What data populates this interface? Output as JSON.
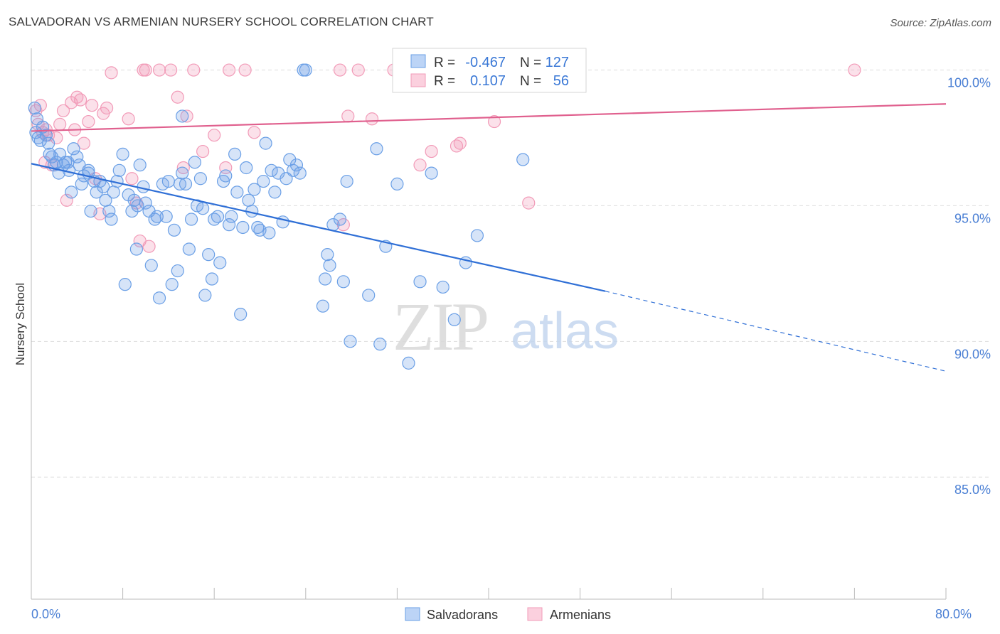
{
  "title": "SALVADORAN VS ARMENIAN NURSERY SCHOOL CORRELATION CHART",
  "source": "Source: ZipAtlas.com",
  "watermark": {
    "zip": "ZIP",
    "atlas": "atlas"
  },
  "colors": {
    "salvadoran": "#6a9fe6",
    "salvadoran_line": "#2f6fd6",
    "armenian": "#f29bb8",
    "armenian_line": "#e0608e",
    "tick_text": "#4a7fd4",
    "grid": "#dddddd"
  },
  "legend": {
    "r_label": "R =",
    "n_label": "N =",
    "salvadoran": {
      "r": "-0.467",
      "n": "127"
    },
    "armenian": {
      "r": "0.107",
      "n": "56"
    }
  },
  "chart_data": {
    "type": "scatter",
    "title": "SALVADORAN VS ARMENIAN NURSERY SCHOOL CORRELATION CHART",
    "xlabel": "",
    "ylabel": "Nursery School",
    "xlim": [
      0,
      80
    ],
    "ylim": [
      80.5,
      100.8
    ],
    "x_ticks": [
      0,
      8,
      16,
      24,
      32,
      40,
      48,
      56,
      64,
      72,
      80
    ],
    "x_tick_labels": [
      {
        "value": 0,
        "label": "0.0%"
      },
      {
        "value": 80,
        "label": "80.0%"
      }
    ],
    "y_ticks": [
      {
        "value": 100,
        "label": "100.0%"
      },
      {
        "value": 95,
        "label": "95.0%"
      },
      {
        "value": 90,
        "label": "90.0%"
      },
      {
        "value": 85,
        "label": "85.0%"
      }
    ],
    "series": [
      {
        "name": "Salvadorans",
        "r": -0.467,
        "n": 127,
        "trend": {
          "x0": 0,
          "y0": 96.55,
          "x1": 50.2,
          "y1": 91.85,
          "dash_to_x": 80,
          "dash_to_y": 88.9
        },
        "points": [
          [
            0.3,
            98.6
          ],
          [
            0.5,
            98.2
          ],
          [
            0.4,
            97.7
          ],
          [
            0.6,
            97.5
          ],
          [
            0.8,
            97.4
          ],
          [
            1,
            97.9
          ],
          [
            1.3,
            97.6
          ],
          [
            1.5,
            97.3
          ],
          [
            1.8,
            96.8
          ],
          [
            2,
            96.5
          ],
          [
            2.2,
            96.6
          ],
          [
            2.4,
            96.2
          ],
          [
            2.5,
            96.9
          ],
          [
            2.8,
            96.5
          ],
          [
            3,
            96.6
          ],
          [
            3.3,
            96.3
          ],
          [
            3.5,
            95.5
          ],
          [
            3.7,
            97.1
          ],
          [
            4,
            96.8
          ],
          [
            4.2,
            96.5
          ],
          [
            4.4,
            95.8
          ],
          [
            4.6,
            96.1
          ],
          [
            5,
            96.3
          ],
          [
            5.2,
            94.8
          ],
          [
            5.5,
            95.9
          ],
          [
            5.7,
            95.5
          ],
          [
            6,
            95.9
          ],
          [
            6.3,
            95.7
          ],
          [
            6.5,
            95.2
          ],
          [
            6.8,
            94.8
          ],
          [
            7,
            94.5
          ],
          [
            7.2,
            95.5
          ],
          [
            7.5,
            95.9
          ],
          [
            7.7,
            96.3
          ],
          [
            8,
            96.9
          ],
          [
            8.2,
            92.1
          ],
          [
            8.5,
            95.4
          ],
          [
            8.8,
            94.8
          ],
          [
            9,
            95.2
          ],
          [
            9.2,
            93.4
          ],
          [
            9.5,
            96.5
          ],
          [
            9.8,
            95.7
          ],
          [
            10,
            95.1
          ],
          [
            10.3,
            94.8
          ],
          [
            10.5,
            92.8
          ],
          [
            10.8,
            94.5
          ],
          [
            11,
            94.6
          ],
          [
            11.2,
            91.6
          ],
          [
            11.5,
            95.8
          ],
          [
            11.8,
            94.6
          ],
          [
            12,
            95.9
          ],
          [
            12.3,
            92.1
          ],
          [
            12.5,
            94.1
          ],
          [
            12.8,
            92.6
          ],
          [
            13,
            95.8
          ],
          [
            13.2,
            96.2
          ],
          [
            13.5,
            95.8
          ],
          [
            13.8,
            93.4
          ],
          [
            14,
            94.5
          ],
          [
            14.3,
            96.6
          ],
          [
            14.5,
            95.0
          ],
          [
            14.8,
            96.0
          ],
          [
            15,
            94.9
          ],
          [
            15.2,
            91.7
          ],
          [
            15.5,
            93.2
          ],
          [
            15.8,
            92.3
          ],
          [
            16,
            94.5
          ],
          [
            16.3,
            94.6
          ],
          [
            16.5,
            92.9
          ],
          [
            16.8,
            95.9
          ],
          [
            17,
            96.1
          ],
          [
            17.3,
            94.3
          ],
          [
            17.5,
            94.6
          ],
          [
            17.8,
            96.9
          ],
          [
            18,
            95.5
          ],
          [
            18.3,
            91.0
          ],
          [
            18.5,
            94.2
          ],
          [
            18.8,
            96.4
          ],
          [
            19,
            95.2
          ],
          [
            19.3,
            94.8
          ],
          [
            19.5,
            95.6
          ],
          [
            19.8,
            94.2
          ],
          [
            20,
            94.1
          ],
          [
            20.3,
            95.9
          ],
          [
            20.5,
            97.3
          ],
          [
            20.8,
            94.0
          ],
          [
            21,
            96.3
          ],
          [
            21.3,
            95.5
          ],
          [
            21.6,
            96.2
          ],
          [
            22,
            94.4
          ],
          [
            22.3,
            96.0
          ],
          [
            22.6,
            96.7
          ],
          [
            22.9,
            96.3
          ],
          [
            23.2,
            96.5
          ],
          [
            23.5,
            96.2
          ],
          [
            23.8,
            100
          ],
          [
            24,
            100
          ],
          [
            25.5,
            91.3
          ],
          [
            25.7,
            92.3
          ],
          [
            25.9,
            93.2
          ],
          [
            26.1,
            92.8
          ],
          [
            26.4,
            94.3
          ],
          [
            27,
            94.5
          ],
          [
            27.3,
            92.2
          ],
          [
            27.6,
            95.9
          ],
          [
            27.9,
            90.0
          ],
          [
            29.5,
            91.7
          ],
          [
            30.2,
            97.1
          ],
          [
            30.5,
            89.9
          ],
          [
            31,
            93.5
          ],
          [
            32,
            95.8
          ],
          [
            33,
            89.2
          ],
          [
            34,
            92.2
          ],
          [
            35,
            96.2
          ],
          [
            36,
            92.0
          ],
          [
            37,
            90.8
          ],
          [
            38,
            92.9
          ],
          [
            39,
            93.9
          ],
          [
            43,
            96.7
          ],
          [
            13.2,
            98.3
          ],
          [
            5,
            96.2
          ],
          [
            3.2,
            96.6
          ],
          [
            9.3,
            95.0
          ],
          [
            1.6,
            96.9
          ]
        ]
      },
      {
        "name": "Armenians",
        "r": 0.107,
        "n": 56,
        "trend": {
          "x0": 0,
          "y0": 97.75,
          "x1": 80,
          "y1": 98.75
        },
        "points": [
          [
            0.4,
            98.5
          ],
          [
            0.6,
            98.0
          ],
          [
            0.8,
            98.7
          ],
          [
            1,
            97.7
          ],
          [
            1.3,
            97.8
          ],
          [
            1.5,
            97.6
          ],
          [
            1.8,
            96.5
          ],
          [
            2.2,
            97.5
          ],
          [
            2.5,
            98.0
          ],
          [
            2.8,
            98.5
          ],
          [
            3.1,
            95.2
          ],
          [
            3.5,
            98.8
          ],
          [
            3.8,
            97.8
          ],
          [
            4,
            99.0
          ],
          [
            4.3,
            98.9
          ],
          [
            4.6,
            97.3
          ],
          [
            5,
            98.1
          ],
          [
            5.3,
            98.7
          ],
          [
            5.6,
            96.0
          ],
          [
            6,
            94.7
          ],
          [
            6.3,
            98.4
          ],
          [
            6.6,
            98.6
          ],
          [
            7,
            99.9
          ],
          [
            8.5,
            98.2
          ],
          [
            8.8,
            96.0
          ],
          [
            9.2,
            95.1
          ],
          [
            9.5,
            93.7
          ],
          [
            9.8,
            100
          ],
          [
            10,
            100
          ],
          [
            10.3,
            93.5
          ],
          [
            11.2,
            100
          ],
          [
            12.2,
            100
          ],
          [
            12.8,
            99.0
          ],
          [
            13.3,
            96.4
          ],
          [
            13.6,
            98.3
          ],
          [
            14.2,
            100
          ],
          [
            15,
            97.0
          ],
          [
            16,
            97.6
          ],
          [
            17,
            96.4
          ],
          [
            17.3,
            100
          ],
          [
            18.7,
            100
          ],
          [
            19.5,
            97.7
          ],
          [
            27,
            100
          ],
          [
            27.3,
            94.3
          ],
          [
            27.7,
            98.3
          ],
          [
            28.6,
            100
          ],
          [
            29.8,
            98.2
          ],
          [
            31.7,
            100
          ],
          [
            34,
            96.5
          ],
          [
            35,
            97.0
          ],
          [
            37.2,
            97.2
          ],
          [
            37.5,
            97.3
          ],
          [
            40.5,
            98.1
          ],
          [
            43.5,
            95.1
          ],
          [
            72,
            100
          ],
          [
            1.2,
            96.6
          ]
        ]
      }
    ]
  },
  "bottom_legend": [
    "Salvadorans",
    "Armenians"
  ]
}
